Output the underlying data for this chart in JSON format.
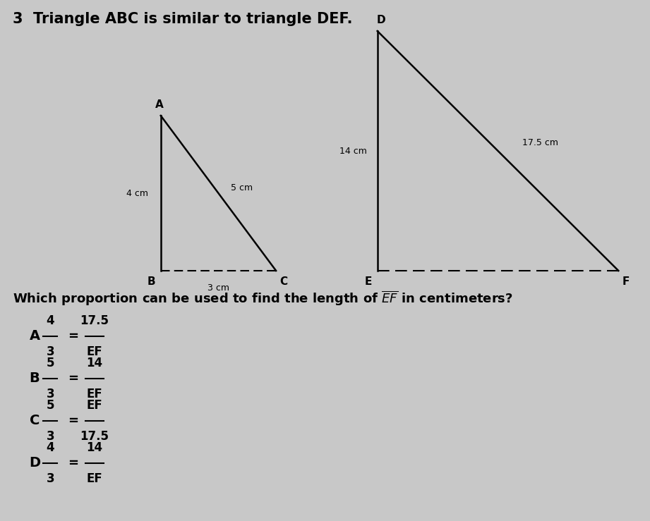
{
  "title": "3  Triangle ABC is similar to triangle DEF.",
  "question": "Which proportion can be used to find the length of $\\overline{EF}$ in centimeters?",
  "choices": [
    {
      "letter": "A",
      "frac_top": "4",
      "frac_bot": "3",
      "eq_top": "17.5",
      "eq_bot": "EF"
    },
    {
      "letter": "B",
      "frac_top": "5",
      "frac_bot": "3",
      "eq_top": "14",
      "eq_bot": "EF"
    },
    {
      "letter": "C",
      "frac_top": "5",
      "frac_bot": "3",
      "eq_top": "EF",
      "eq_bot": "17.5"
    },
    {
      "letter": "D",
      "frac_top": "4",
      "frac_bot": "3",
      "eq_top": "14",
      "eq_bot": "EF"
    }
  ],
  "bg_color": "#c8c8c8",
  "text_color": "#000000",
  "abc_B": [
    2.3,
    3.55
  ],
  "abc_C": [
    3.95,
    3.55
  ],
  "abc_A": [
    2.3,
    5.75
  ],
  "def_E": [
    5.4,
    3.55
  ],
  "def_F": [
    8.85,
    3.55
  ],
  "def_D": [
    5.4,
    6.95
  ]
}
